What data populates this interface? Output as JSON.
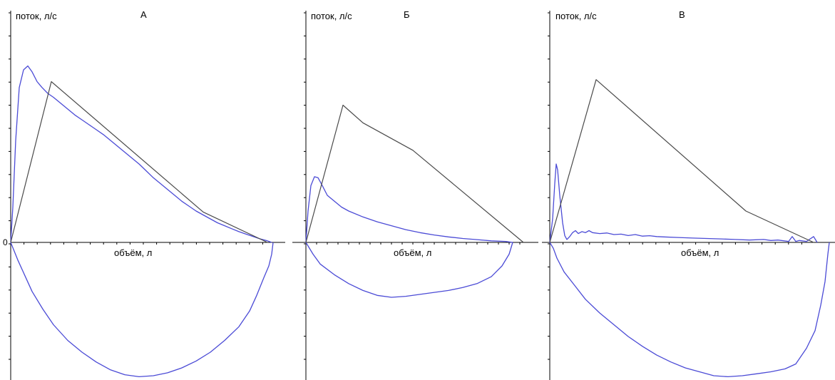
{
  "chart_data": [
    {
      "type": "line",
      "title": "А",
      "xlabel": "объём, л",
      "ylabel": "поток, л/с",
      "zero_label": "0",
      "grid": false,
      "series": [
        {
          "role": "patient",
          "color": "#4b4bd6",
          "points": [
            [
              0,
              0
            ],
            [
              0.03,
              1.8
            ],
            [
              0.07,
              5.2
            ],
            [
              0.12,
              7.9
            ],
            [
              0.18,
              8.8
            ],
            [
              0.24,
              9.0
            ],
            [
              0.3,
              8.7
            ],
            [
              0.37,
              8.2
            ],
            [
              0.44,
              7.9
            ],
            [
              0.52,
              7.6
            ],
            [
              0.6,
              7.4
            ],
            [
              0.7,
              7.1
            ],
            [
              0.8,
              6.8
            ],
            [
              0.9,
              6.5
            ],
            [
              1.0,
              6.25
            ],
            [
              1.1,
              6.0
            ],
            [
              1.2,
              5.75
            ],
            [
              1.3,
              5.5
            ],
            [
              1.4,
              5.2
            ],
            [
              1.5,
              4.9
            ],
            [
              1.6,
              4.6
            ],
            [
              1.7,
              4.3
            ],
            [
              1.8,
              4.0
            ],
            [
              1.9,
              3.65
            ],
            [
              2.0,
              3.3
            ],
            [
              2.1,
              3.0
            ],
            [
              2.2,
              2.7
            ],
            [
              2.3,
              2.4
            ],
            [
              2.4,
              2.1
            ],
            [
              2.5,
              1.85
            ],
            [
              2.6,
              1.6
            ],
            [
              2.7,
              1.4
            ],
            [
              2.8,
              1.2
            ],
            [
              2.9,
              1.0
            ],
            [
              3.0,
              0.85
            ],
            [
              3.1,
              0.7
            ],
            [
              3.2,
              0.55
            ],
            [
              3.3,
              0.42
            ],
            [
              3.4,
              0.3
            ],
            [
              3.5,
              0.18
            ],
            [
              3.6,
              0.08
            ],
            [
              3.66,
              0.0
            ]
          ]
        },
        {
          "role": "patient-inspiration",
          "color": "#4b4bd6",
          "points": [
            [
              0,
              0
            ],
            [
              0.1,
              -0.9
            ],
            [
              0.2,
              -1.7
            ],
            [
              0.3,
              -2.5
            ],
            [
              0.45,
              -3.4
            ],
            [
              0.6,
              -4.2
            ],
            [
              0.8,
              -5.0
            ],
            [
              1.0,
              -5.6
            ],
            [
              1.2,
              -6.1
            ],
            [
              1.4,
              -6.5
            ],
            [
              1.6,
              -6.75
            ],
            [
              1.8,
              -6.85
            ],
            [
              2.0,
              -6.8
            ],
            [
              2.2,
              -6.65
            ],
            [
              2.4,
              -6.4
            ],
            [
              2.6,
              -6.05
            ],
            [
              2.8,
              -5.6
            ],
            [
              3.0,
              -5.0
            ],
            [
              3.2,
              -4.3
            ],
            [
              3.35,
              -3.5
            ],
            [
              3.45,
              -2.7
            ],
            [
              3.55,
              -1.8
            ],
            [
              3.62,
              -1.2
            ],
            [
              3.66,
              -0.6
            ],
            [
              3.68,
              0.0
            ]
          ]
        },
        {
          "role": "predicted",
          "color": "#4a4a4a",
          "points": [
            [
              0,
              0
            ],
            [
              0.57,
              8.2
            ],
            [
              2.7,
              1.55
            ],
            [
              3.6,
              0.0
            ]
          ]
        }
      ],
      "x_range": [
        0,
        3.9
      ],
      "y_range": [
        -7,
        10
      ]
    },
    {
      "type": "line",
      "title": "Б",
      "xlabel": "объём, л",
      "ylabel": "поток, л/с",
      "zero_label": "",
      "grid": false,
      "series": [
        {
          "role": "patient",
          "color": "#4b4bd6",
          "points": [
            [
              0,
              0
            ],
            [
              0.03,
              1.6
            ],
            [
              0.07,
              2.9
            ],
            [
              0.12,
              3.35
            ],
            [
              0.17,
              3.3
            ],
            [
              0.23,
              2.9
            ],
            [
              0.3,
              2.4
            ],
            [
              0.4,
              2.1
            ],
            [
              0.5,
              1.8
            ],
            [
              0.6,
              1.6
            ],
            [
              0.8,
              1.3
            ],
            [
              1.0,
              1.05
            ],
            [
              1.2,
              0.85
            ],
            [
              1.4,
              0.65
            ],
            [
              1.6,
              0.5
            ],
            [
              1.8,
              0.38
            ],
            [
              2.0,
              0.28
            ],
            [
              2.2,
              0.2
            ],
            [
              2.4,
              0.14
            ],
            [
              2.6,
              0.08
            ],
            [
              2.8,
              0.05
            ],
            [
              2.9,
              0.0
            ]
          ]
        },
        {
          "role": "patient-inspiration",
          "color": "#4b4bd6",
          "points": [
            [
              0,
              0
            ],
            [
              0.1,
              -0.6
            ],
            [
              0.2,
              -1.1
            ],
            [
              0.4,
              -1.65
            ],
            [
              0.6,
              -2.1
            ],
            [
              0.8,
              -2.45
            ],
            [
              1.0,
              -2.7
            ],
            [
              1.2,
              -2.8
            ],
            [
              1.4,
              -2.75
            ],
            [
              1.6,
              -2.65
            ],
            [
              1.8,
              -2.55
            ],
            [
              2.0,
              -2.45
            ],
            [
              2.2,
              -2.3
            ],
            [
              2.4,
              -2.1
            ],
            [
              2.6,
              -1.75
            ],
            [
              2.75,
              -1.2
            ],
            [
              2.85,
              -0.6
            ],
            [
              2.9,
              0.0
            ]
          ]
        },
        {
          "role": "predicted",
          "color": "#4a4a4a",
          "points": [
            [
              0,
              0
            ],
            [
              0.52,
              7.0
            ],
            [
              0.8,
              6.1
            ],
            [
              1.5,
              4.7
            ],
            [
              3.05,
              0.0
            ]
          ]
        }
      ],
      "x_range": [
        0,
        3.9
      ],
      "y_range": [
        -7,
        10
      ]
    },
    {
      "type": "line",
      "title": "В",
      "xlabel": "объём, л",
      "ylabel": "поток, л/с",
      "zero_label": "",
      "grid": false,
      "series": [
        {
          "role": "patient",
          "color": "#4b4bd6",
          "points": [
            [
              0,
              0
            ],
            [
              0.04,
              1.2
            ],
            [
              0.07,
              3.0
            ],
            [
              0.09,
              4.0
            ],
            [
              0.11,
              3.7
            ],
            [
              0.14,
              2.4
            ],
            [
              0.18,
              1.0
            ],
            [
              0.21,
              0.35
            ],
            [
              0.24,
              0.15
            ],
            [
              0.28,
              0.3
            ],
            [
              0.32,
              0.5
            ],
            [
              0.36,
              0.6
            ],
            [
              0.4,
              0.45
            ],
            [
              0.45,
              0.55
            ],
            [
              0.5,
              0.5
            ],
            [
              0.55,
              0.6
            ],
            [
              0.6,
              0.5
            ],
            [
              0.7,
              0.45
            ],
            [
              0.8,
              0.48
            ],
            [
              0.9,
              0.4
            ],
            [
              1.0,
              0.42
            ],
            [
              1.1,
              0.35
            ],
            [
              1.2,
              0.4
            ],
            [
              1.3,
              0.32
            ],
            [
              1.4,
              0.34
            ],
            [
              1.5,
              0.3
            ],
            [
              1.6,
              0.28
            ],
            [
              1.8,
              0.25
            ],
            [
              2.0,
              0.22
            ],
            [
              2.2,
              0.2
            ],
            [
              2.4,
              0.18
            ],
            [
              2.6,
              0.15
            ],
            [
              2.8,
              0.12
            ],
            [
              3.0,
              0.15
            ],
            [
              3.1,
              0.1
            ],
            [
              3.2,
              0.12
            ],
            [
              3.35,
              0.05
            ],
            [
              3.4,
              0.3
            ],
            [
              3.45,
              0.05
            ],
            [
              3.5,
              0.1
            ],
            [
              3.6,
              0.05
            ],
            [
              3.7,
              0.3
            ],
            [
              3.75,
              0.0
            ]
          ]
        },
        {
          "role": "patient-inspiration",
          "color": "#4b4bd6",
          "points": [
            [
              0,
              0
            ],
            [
              0.05,
              -0.3
            ],
            [
              0.1,
              -0.8
            ],
            [
              0.2,
              -1.5
            ],
            [
              0.35,
              -2.2
            ],
            [
              0.5,
              -2.9
            ],
            [
              0.7,
              -3.6
            ],
            [
              0.9,
              -4.2
            ],
            [
              1.1,
              -4.8
            ],
            [
              1.3,
              -5.3
            ],
            [
              1.5,
              -5.75
            ],
            [
              1.7,
              -6.1
            ],
            [
              1.9,
              -6.4
            ],
            [
              2.1,
              -6.6
            ],
            [
              2.3,
              -6.8
            ],
            [
              2.5,
              -6.85
            ],
            [
              2.7,
              -6.8
            ],
            [
              2.9,
              -6.7
            ],
            [
              3.1,
              -6.6
            ],
            [
              3.3,
              -6.45
            ],
            [
              3.45,
              -6.2
            ],
            [
              3.6,
              -5.4
            ],
            [
              3.72,
              -4.5
            ],
            [
              3.8,
              -3.2
            ],
            [
              3.86,
              -2.0
            ],
            [
              3.9,
              -0.6
            ],
            [
              3.92,
              0.0
            ]
          ]
        },
        {
          "role": "predicted",
          "color": "#4a4a4a",
          "points": [
            [
              0,
              0
            ],
            [
              0.65,
              8.3
            ],
            [
              2.75,
              1.6
            ],
            [
              3.7,
              0.0
            ]
          ]
        }
      ],
      "x_range": [
        0,
        3.95
      ],
      "y_range": [
        -7,
        10
      ]
    }
  ]
}
